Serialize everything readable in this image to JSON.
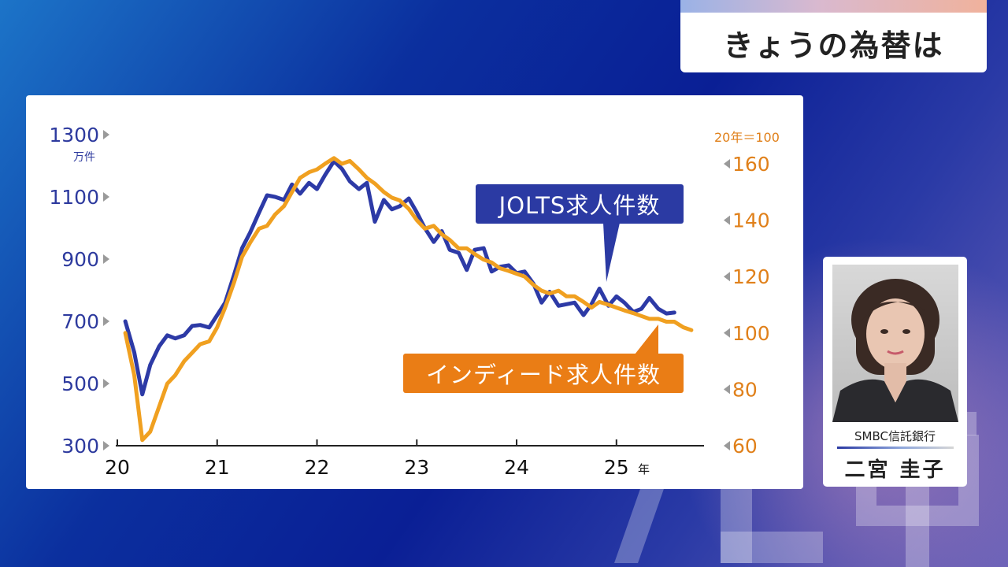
{
  "header": {
    "title": "きょうの為替は"
  },
  "presenter": {
    "company": "SMBC信託銀行",
    "name": "二宮 圭子"
  },
  "callouts": {
    "jolts": "JOLTS求人件数",
    "indeed": "インディード求人件数"
  },
  "colors": {
    "jolts": "#2d3aa6",
    "indeed": "#f0a020"
  },
  "chart_data": {
    "type": "line",
    "title": "",
    "x_labels": [
      "20",
      "21",
      "22",
      "23",
      "24",
      "25"
    ],
    "x_unit": "年",
    "x_range": [
      2020.0,
      2025.83
    ],
    "left_axis": {
      "unit": "万件",
      "ticks": [
        300,
        500,
        700,
        900,
        1100,
        1300
      ],
      "range": [
        300,
        1300
      ]
    },
    "right_axis": {
      "unit": "20年＝100",
      "ticks": [
        60,
        80,
        100,
        120,
        140,
        160
      ],
      "range": [
        60,
        172
      ]
    },
    "series": [
      {
        "name": "JOLTS求人件数",
        "axis": "left",
        "points": [
          [
            2020.08,
            700
          ],
          [
            2020.17,
            600
          ],
          [
            2020.25,
            465
          ],
          [
            2020.33,
            560
          ],
          [
            2020.42,
            620
          ],
          [
            2020.5,
            655
          ],
          [
            2020.58,
            645
          ],
          [
            2020.67,
            655
          ],
          [
            2020.75,
            685
          ],
          [
            2020.83,
            688
          ],
          [
            2020.92,
            680
          ],
          [
            2021.0,
            720
          ],
          [
            2021.08,
            760
          ],
          [
            2021.17,
            850
          ],
          [
            2021.25,
            935
          ],
          [
            2021.33,
            985
          ],
          [
            2021.42,
            1050
          ],
          [
            2021.5,
            1105
          ],
          [
            2021.58,
            1100
          ],
          [
            2021.67,
            1090
          ],
          [
            2021.75,
            1140
          ],
          [
            2021.83,
            1110
          ],
          [
            2021.92,
            1145
          ],
          [
            2022.0,
            1125
          ],
          [
            2022.08,
            1170
          ],
          [
            2022.17,
            1215
          ],
          [
            2022.25,
            1190
          ],
          [
            2022.33,
            1150
          ],
          [
            2022.42,
            1125
          ],
          [
            2022.5,
            1145
          ],
          [
            2022.58,
            1020
          ],
          [
            2022.67,
            1090
          ],
          [
            2022.75,
            1060
          ],
          [
            2022.83,
            1070
          ],
          [
            2022.92,
            1095
          ],
          [
            2023.0,
            1050
          ],
          [
            2023.08,
            1000
          ],
          [
            2023.17,
            955
          ],
          [
            2023.25,
            990
          ],
          [
            2023.33,
            930
          ],
          [
            2023.42,
            920
          ],
          [
            2023.5,
            865
          ],
          [
            2023.58,
            930
          ],
          [
            2023.67,
            935
          ],
          [
            2023.75,
            860
          ],
          [
            2023.83,
            875
          ],
          [
            2023.92,
            880
          ],
          [
            2024.0,
            855
          ],
          [
            2024.08,
            860
          ],
          [
            2024.17,
            820
          ],
          [
            2024.25,
            760
          ],
          [
            2024.33,
            795
          ],
          [
            2024.42,
            750
          ],
          [
            2024.5,
            755
          ],
          [
            2024.58,
            760
          ],
          [
            2024.67,
            720
          ],
          [
            2024.75,
            755
          ],
          [
            2024.83,
            805
          ],
          [
            2024.92,
            750
          ],
          [
            2025.0,
            780
          ],
          [
            2025.08,
            760
          ],
          [
            2025.17,
            730
          ],
          [
            2025.25,
            740
          ],
          [
            2025.33,
            775
          ],
          [
            2025.42,
            740
          ],
          [
            2025.5,
            725
          ],
          [
            2025.58,
            728
          ]
        ]
      },
      {
        "name": "インディード求人件数",
        "axis": "right",
        "points": [
          [
            2020.08,
            100
          ],
          [
            2020.17,
            85
          ],
          [
            2020.25,
            62
          ],
          [
            2020.33,
            65
          ],
          [
            2020.42,
            74
          ],
          [
            2020.5,
            82
          ],
          [
            2020.58,
            85
          ],
          [
            2020.67,
            90
          ],
          [
            2020.75,
            93
          ],
          [
            2020.83,
            96
          ],
          [
            2020.92,
            97
          ],
          [
            2021.0,
            102
          ],
          [
            2021.08,
            109
          ],
          [
            2021.17,
            118
          ],
          [
            2021.25,
            127
          ],
          [
            2021.33,
            132
          ],
          [
            2021.42,
            137
          ],
          [
            2021.5,
            138
          ],
          [
            2021.58,
            142
          ],
          [
            2021.67,
            145
          ],
          [
            2021.75,
            150
          ],
          [
            2021.83,
            155
          ],
          [
            2021.92,
            157
          ],
          [
            2022.0,
            158
          ],
          [
            2022.08,
            160
          ],
          [
            2022.17,
            162
          ],
          [
            2022.25,
            160
          ],
          [
            2022.33,
            161
          ],
          [
            2022.42,
            158
          ],
          [
            2022.5,
            155
          ],
          [
            2022.58,
            153
          ],
          [
            2022.67,
            150
          ],
          [
            2022.75,
            148
          ],
          [
            2022.83,
            147
          ],
          [
            2022.92,
            144
          ],
          [
            2023.0,
            140
          ],
          [
            2023.08,
            137
          ],
          [
            2023.17,
            138
          ],
          [
            2023.25,
            135
          ],
          [
            2023.33,
            133
          ],
          [
            2023.42,
            130
          ],
          [
            2023.5,
            130
          ],
          [
            2023.58,
            128
          ],
          [
            2023.67,
            126
          ],
          [
            2023.75,
            125
          ],
          [
            2023.83,
            123
          ],
          [
            2023.92,
            122
          ],
          [
            2024.0,
            121
          ],
          [
            2024.08,
            120
          ],
          [
            2024.17,
            117
          ],
          [
            2024.25,
            115
          ],
          [
            2024.33,
            114
          ],
          [
            2024.42,
            115
          ],
          [
            2024.5,
            113
          ],
          [
            2024.58,
            113
          ],
          [
            2024.67,
            111
          ],
          [
            2024.75,
            109
          ],
          [
            2024.83,
            111
          ],
          [
            2024.92,
            110
          ],
          [
            2025.0,
            109
          ],
          [
            2025.08,
            108
          ],
          [
            2025.17,
            107
          ],
          [
            2025.25,
            106
          ],
          [
            2025.33,
            105
          ],
          [
            2025.42,
            105
          ],
          [
            2025.5,
            104
          ],
          [
            2025.58,
            104
          ],
          [
            2025.67,
            102
          ],
          [
            2025.75,
            101
          ]
        ]
      }
    ]
  }
}
